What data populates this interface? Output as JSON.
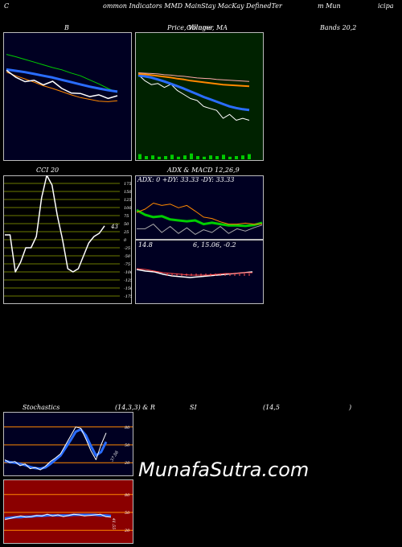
{
  "header": {
    "left": "C",
    "mid": "ommon  Indicators MMD MainStay MacKay DefinedTer",
    "right": "m Mun",
    "far_right": "icipa"
  },
  "titles": {
    "bollinger": "B",
    "price_ma": "Price,  Volume,  MA",
    "price_ma_overlay": "Ollinger",
    "bands": "Bands 20,2",
    "cci": "CCI 20",
    "adx_macd": "ADX  & MACD 12,26,9",
    "stoch_left": "Stochastics",
    "stoch_params": "(14,3,3) & R",
    "rsi": "SI",
    "rsi_params": "(14,5",
    "rsi_close": ")"
  },
  "adx": {
    "text": "ADX: 0  +DY: 33.33 -DY: 33.33"
  },
  "macd": {
    "left": "14.8",
    "right": "6,  15.06,  -0.2"
  },
  "watermark": "MunafaSutra.com",
  "colors": {
    "bg": "#000000",
    "navy": "#000022",
    "green_bg": "#002200",
    "olive": "#2f3a00",
    "red_bg": "#8b0000",
    "white": "#ffffff",
    "blue": "#2a6dff",
    "green": "#00cc00",
    "orange": "#ff8800"
  },
  "chart_data": [
    {
      "type": "line",
      "panel": "bollinger",
      "series": [
        {
          "values": [
            86.5,
            86.0,
            85.4,
            84.8,
            84.2,
            83.6,
            83.1,
            82.4,
            81.8,
            80.9,
            80.0,
            79.0,
            78.1
          ]
        },
        {
          "values": [
            83.2,
            82.9,
            82.6,
            82.2,
            81.8,
            81.4,
            80.9,
            80.4,
            79.9,
            79.4,
            79.0,
            78.6,
            78.3
          ]
        },
        {
          "values": [
            82.6,
            81.8,
            81.1,
            80.4,
            79.6,
            79.0,
            78.3,
            77.6,
            77.0,
            76.6,
            76.2,
            76.1,
            76.3
          ]
        },
        {
          "values": [
            83.0,
            81.5,
            80.5,
            80.8,
            79.8,
            80.6,
            79.0,
            78.0,
            77.9,
            77.2,
            77.6,
            76.8,
            77.4
          ]
        }
      ]
    },
    {
      "type": "line",
      "panel": "price_volume_ma",
      "series": [
        {
          "values": [
            83.0,
            81.5,
            80.5,
            80.8,
            79.8,
            80.6,
            79.0,
            78.0,
            77.0,
            76.5,
            75.0,
            74.5,
            74.0,
            72.0,
            73.0,
            71.5,
            72.0,
            71.5
          ]
        },
        {
          "values": [
            82.8,
            82.6,
            82.3,
            81.8,
            81.3,
            80.7,
            80.1,
            79.5,
            78.8,
            78.1,
            77.4,
            76.8,
            76.2,
            75.6,
            75.0,
            74.6,
            74.3,
            74.1
          ]
        },
        {
          "values": [
            83.2,
            83.1,
            82.9,
            82.7,
            82.5,
            82.3,
            82.0,
            81.8,
            81.5,
            81.3,
            81.1,
            80.9,
            80.7,
            80.5,
            80.4,
            80.3,
            80.2,
            80.1
          ]
        },
        {
          "values": [
            83.5,
            83.4,
            83.3,
            83.2,
            83.0,
            82.9,
            82.7,
            82.6,
            82.4,
            82.2,
            82.1,
            82.0,
            81.8,
            81.7,
            81.6,
            81.5,
            81.4,
            81.3
          ]
        }
      ],
      "volume": [
        0.8,
        0.5,
        0.6,
        0.4,
        0.5,
        0.7,
        0.4,
        0.6,
        0.9,
        0.5,
        0.4,
        0.6,
        0.5,
        0.7,
        0.4,
        0.5,
        0.6,
        0.8
      ]
    },
    {
      "type": "line",
      "panel": "cci",
      "ytick_labels": [
        "175",
        "150",
        "125",
        "100",
        "75",
        "50",
        "25",
        "0",
        "-25",
        "-50",
        "-75",
        "-100",
        "-125",
        "-150",
        "-175"
      ],
      "ylim": [
        -200,
        200
      ],
      "series": [
        {
          "values": [
            15,
            15,
            -100,
            -70,
            -25,
            -25,
            10,
            130,
            200,
            170,
            75,
            0,
            -90,
            -100,
            -90,
            -50,
            -10,
            10,
            20,
            43
          ]
        }
      ],
      "annotations": [
        "43"
      ]
    },
    {
      "type": "line",
      "panel": "adx",
      "series": [
        {
          "values": [
            60,
            50,
            45,
            47,
            40,
            38,
            36,
            38,
            30,
            33,
            30,
            27,
            27,
            26,
            28,
            33
          ]
        },
        {
          "values": [
            55,
            62,
            75,
            70,
            73,
            65,
            70,
            58,
            45,
            42,
            35,
            30,
            30,
            32,
            30,
            30
          ]
        },
        {
          "values": [
            20,
            20,
            30,
            12,
            25,
            10,
            22,
            8,
            18,
            12,
            25,
            10,
            20,
            15,
            22,
            28
          ]
        }
      ]
    },
    {
      "type": "line",
      "panel": "macd",
      "series": [
        {
          "values": [
            14.8,
            14.6,
            14.5,
            14.2,
            14.0,
            13.9,
            13.8,
            13.9,
            14.0,
            14.1,
            14.2,
            14.3,
            14.4,
            14.5
          ]
        },
        {
          "values": [
            14.9,
            14.8,
            14.6,
            14.4,
            14.3,
            14.2,
            14.1,
            14.1,
            14.1,
            14.2,
            14.3,
            14.3,
            14.4,
            14.4
          ]
        }
      ]
    },
    {
      "type": "line",
      "panel": "stochastics",
      "ytick_labels": [
        "80",
        "50",
        "20"
      ],
      "ylim": [
        0,
        100
      ],
      "series": [
        {
          "values": [
            25,
            20,
            22,
            15,
            18,
            10,
            12,
            8,
            14,
            22,
            28,
            35,
            50,
            65,
            80,
            78,
            60,
            40,
            25,
            50,
            70
          ]
        },
        {
          "values": [
            23,
            21,
            20,
            18,
            16,
            13,
            11,
            10,
            12,
            18,
            25,
            32,
            45,
            58,
            72,
            76,
            66,
            48,
            32,
            38,
            55
          ]
        }
      ],
      "annotations": [
        "37.56"
      ]
    },
    {
      "type": "line",
      "panel": "rsi",
      "ytick_labels": [
        "80",
        "50",
        "20"
      ],
      "ylim": [
        0,
        100
      ],
      "series": [
        {
          "values": [
            38,
            40,
            42,
            44,
            42,
            43,
            45,
            44,
            47,
            44,
            46,
            43,
            45,
            47,
            46,
            44,
            45,
            46,
            47,
            43,
            42
          ]
        },
        {
          "values": [
            40,
            41,
            42,
            42,
            43,
            43,
            44,
            44,
            45,
            45,
            45,
            45,
            45,
            46,
            46,
            46,
            46,
            46,
            45,
            45,
            44
          ]
        }
      ],
      "annotations": [
        "41.55"
      ]
    }
  ]
}
